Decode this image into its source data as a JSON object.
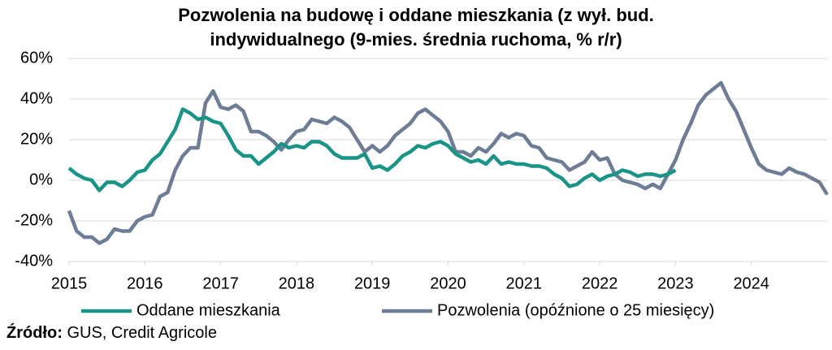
{
  "chart_data": {
    "type": "line",
    "title": [
      "Pozwolenia na budowę i oddane mieszkania (z wył. bud.",
      "indywidualnego (9-mies. średnia ruchoma, % r/r)"
    ],
    "xlim": [
      2015,
      2025
    ],
    "xticks": [
      2015,
      2016,
      2017,
      2018,
      2019,
      2020,
      2021,
      2022,
      2023,
      2024
    ],
    "ylim": [
      -40,
      60
    ],
    "yticks": [
      {
        "value": -40,
        "label": "-40%"
      },
      {
        "value": -20,
        "label": "-20%"
      },
      {
        "value": 0,
        "label": "0%"
      },
      {
        "value": 20,
        "label": "20%"
      },
      {
        "value": 40,
        "label": "40%"
      },
      {
        "value": 60,
        "label": "60%"
      }
    ],
    "grid": true,
    "series": [
      {
        "name": "Oddane mieszkania",
        "color": "#1b9488",
        "x": [
          2015.0,
          2015.1,
          2015.2,
          2015.3,
          2015.4,
          2015.5,
          2015.6,
          2015.7,
          2015.8,
          2015.9,
          2016.0,
          2016.1,
          2016.2,
          2016.3,
          2016.4,
          2016.5,
          2016.6,
          2016.7,
          2016.8,
          2016.9,
          2017.0,
          2017.1,
          2017.2,
          2017.3,
          2017.4,
          2017.5,
          2017.6,
          2017.7,
          2017.8,
          2017.9,
          2018.0,
          2018.1,
          2018.2,
          2018.3,
          2018.4,
          2018.5,
          2018.6,
          2018.7,
          2018.8,
          2018.9,
          2019.0,
          2019.1,
          2019.2,
          2019.3,
          2019.4,
          2019.5,
          2019.6,
          2019.7,
          2019.8,
          2019.9,
          2020.0,
          2020.1,
          2020.2,
          2020.3,
          2020.4,
          2020.5,
          2020.6,
          2020.7,
          2020.8,
          2020.9,
          2021.0,
          2021.1,
          2021.2,
          2021.3,
          2021.4,
          2021.5,
          2021.6,
          2021.7,
          2021.8,
          2021.9,
          2022.0,
          2022.1,
          2022.2,
          2022.3,
          2022.4,
          2022.5,
          2022.6,
          2022.7,
          2022.8,
          2022.9,
          2023.0
        ],
        "values": [
          6,
          3,
          1,
          0,
          -5,
          -1,
          -1,
          -3,
          0,
          4,
          5,
          10,
          13,
          19,
          25,
          35,
          33,
          30,
          31,
          29,
          28,
          22,
          15,
          12,
          12,
          8,
          11,
          14,
          18,
          16,
          17,
          16,
          19,
          19,
          17,
          13,
          11,
          11,
          11,
          13,
          6,
          7,
          5,
          8,
          12,
          14,
          17,
          16,
          18,
          19,
          17,
          13,
          11,
          9,
          10,
          8,
          12,
          8,
          9,
          8,
          8,
          7,
          7,
          6,
          3,
          1,
          -3,
          -2,
          1,
          3,
          0,
          2,
          3,
          5,
          4,
          2,
          3,
          3,
          2,
          3,
          5
        ]
      },
      {
        "name": "Pozwolenia (opóźnione o 25 miesięcy)",
        "color": "#6e7d96",
        "x": [
          2015.0,
          2015.1,
          2015.2,
          2015.3,
          2015.4,
          2015.5,
          2015.6,
          2015.7,
          2015.8,
          2015.9,
          2016.0,
          2016.1,
          2016.2,
          2016.3,
          2016.4,
          2016.5,
          2016.6,
          2016.7,
          2016.8,
          2016.9,
          2017.0,
          2017.1,
          2017.2,
          2017.3,
          2017.4,
          2017.5,
          2017.6,
          2017.7,
          2017.8,
          2017.9,
          2018.0,
          2018.1,
          2018.2,
          2018.3,
          2018.4,
          2018.5,
          2018.6,
          2018.7,
          2018.8,
          2018.9,
          2019.0,
          2019.1,
          2019.2,
          2019.3,
          2019.4,
          2019.5,
          2019.6,
          2019.7,
          2019.8,
          2019.9,
          2020.0,
          2020.1,
          2020.2,
          2020.3,
          2020.4,
          2020.5,
          2020.6,
          2020.7,
          2020.8,
          2020.9,
          2021.0,
          2021.1,
          2021.2,
          2021.3,
          2021.4,
          2021.5,
          2021.6,
          2021.7,
          2021.8,
          2021.9,
          2022.0,
          2022.1,
          2022.2,
          2022.3,
          2022.4,
          2022.5,
          2022.6,
          2022.7,
          2022.8,
          2022.9,
          2023.0,
          2023.1,
          2023.2,
          2023.3,
          2023.4,
          2023.5,
          2023.6,
          2023.7,
          2023.8,
          2023.9,
          2024.0,
          2024.1,
          2024.2,
          2024.3,
          2024.4,
          2024.5,
          2024.6,
          2024.7,
          2024.8,
          2024.9,
          2025.0
        ],
        "values": [
          -15,
          -25,
          -28,
          -28,
          -31,
          -29,
          -24,
          -25,
          -25,
          -20,
          -18,
          -17,
          -8,
          -6,
          5,
          12,
          16,
          16,
          38,
          44,
          36,
          35,
          37,
          34,
          24,
          24,
          22,
          19,
          15,
          20,
          24,
          25,
          30,
          29,
          28,
          31,
          29,
          26,
          20,
          14,
          17,
          14,
          17,
          22,
          25,
          28,
          33,
          35,
          32,
          29,
          24,
          14,
          14,
          12,
          16,
          14,
          18,
          23,
          21,
          23,
          22,
          17,
          16,
          11,
          10,
          9,
          5,
          7,
          9,
          14,
          10,
          11,
          3,
          0,
          -1,
          -2,
          -4,
          -2,
          -4,
          3,
          10,
          20,
          28,
          37,
          42,
          45,
          48,
          40,
          34,
          25,
          16,
          8,
          5,
          4,
          3,
          6,
          4,
          3,
          1,
          -1,
          -7
        ]
      }
    ],
    "source_label": "Źródło:",
    "source": "GUS, Credit Agricole"
  }
}
